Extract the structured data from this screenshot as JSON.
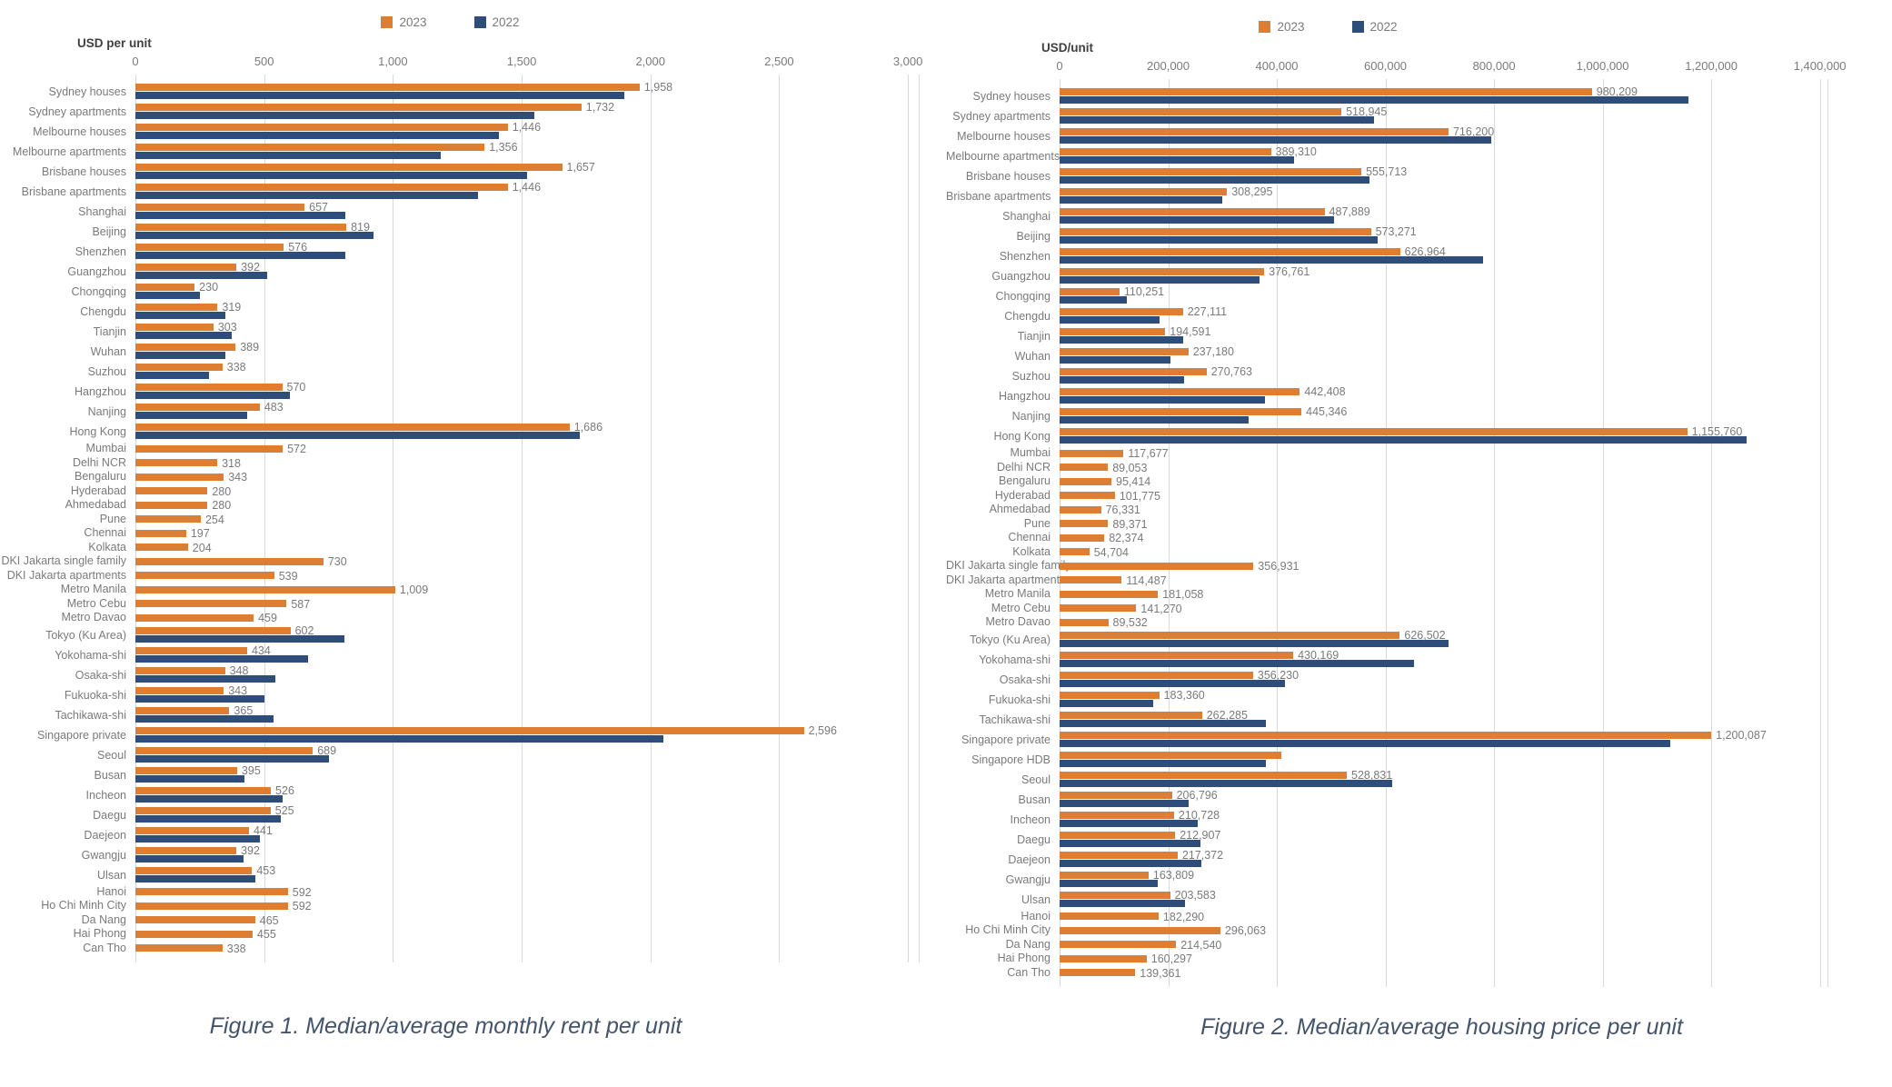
{
  "chart_data": [
    {
      "type": "bar",
      "orientation": "horizontal",
      "x_axis_title": "USD per unit",
      "caption": "Figure 1. Median/average monthly rent per unit",
      "xlim": [
        0,
        3042
      ],
      "grid": true,
      "legend_position": "top-center",
      "legend": [
        "2023",
        "2022"
      ],
      "x_ticks": {
        "values": [
          0,
          500,
          1000,
          1500,
          2000,
          2500,
          3000
        ],
        "labels": [
          "0",
          "500",
          "1,000",
          "1,500",
          "2,000",
          "2,500",
          "3,000"
        ]
      },
      "categories": [
        "Sydney houses",
        "Sydney apartments",
        "Melbourne houses",
        "Melbourne apartments",
        "Brisbane houses",
        "Brisbane apartments",
        "Shanghai",
        "Beijing",
        "Shenzhen",
        "Guangzhou",
        "Chongqing",
        "Chengdu",
        "Tianjin",
        "Wuhan",
        "Suzhou",
        "Hangzhou",
        "Nanjing",
        "Hong Kong",
        "Mumbai",
        "Delhi NCR",
        "Bengaluru",
        "Hyderabad",
        "Ahmedabad",
        "Pune",
        "Chennai",
        "Kolkata",
        "DKI Jakarta single family",
        "DKI Jakarta apartments",
        "Metro Manila",
        "Metro Cebu",
        "Metro Davao",
        "Tokyo (Ku Area)",
        "Yokohama-shi",
        "Osaka-shi",
        "Fukuoka-shi",
        "Tachikawa-shi",
        "Singapore private",
        "Seoul",
        "Busan",
        "Incheon",
        "Daegu",
        "Daejeon",
        "Gwangju",
        "Ulsan",
        "Hanoi",
        "Ho Chi Minh City",
        "Da Nang",
        "Hai Phong",
        "Can Tho"
      ],
      "series": [
        {
          "name": "2023",
          "color": "#DE7E32",
          "values": [
            1958,
            1732,
            1446,
            1356,
            1657,
            1446,
            657,
            819,
            576,
            392,
            230,
            319,
            303,
            389,
            338,
            570,
            483,
            1686,
            572,
            318,
            343,
            280,
            280,
            254,
            197,
            204,
            730,
            539,
            1009,
            587,
            459,
            602,
            434,
            348,
            343,
            365,
            2596,
            689,
            395,
            526,
            525,
            441,
            392,
            453,
            592,
            592,
            465,
            455,
            338
          ],
          "labels": [
            "1,958",
            "1,732",
            "1,446",
            "1,356",
            "1,657",
            "1,446",
            "657",
            "819",
            "576",
            "392",
            "230",
            "319",
            "303",
            "389",
            "338",
            "570",
            "483",
            "1,686",
            "572",
            "318",
            "343",
            "280",
            "280",
            "254",
            "197",
            "204",
            "730",
            "539",
            "1,009",
            "587",
            "459",
            "602",
            "434",
            "348",
            "343",
            "365",
            "2,596",
            "689",
            "395",
            "526",
            "525",
            "441",
            "392",
            "453",
            "592",
            "592",
            "465",
            "455",
            "338"
          ]
        },
        {
          "name": "2022",
          "color": "#2E4D7B",
          "values": [
            1900,
            1550,
            1410,
            1185,
            1520,
            1330,
            815,
            925,
            815,
            510,
            250,
            350,
            375,
            350,
            285,
            600,
            435,
            1725,
            null,
            null,
            null,
            null,
            null,
            null,
            null,
            null,
            null,
            null,
            null,
            null,
            null,
            810,
            670,
            545,
            500,
            535,
            2050,
            750,
            425,
            570,
            565,
            485,
            420,
            465,
            null,
            null,
            null,
            null,
            null
          ],
          "labels": null
        }
      ]
    },
    {
      "type": "bar",
      "orientation": "horizontal",
      "x_axis_title": "USD/unit",
      "caption": "Figure 2. Median/average housing price per unit",
      "xlim": [
        0,
        1414000
      ],
      "grid": true,
      "legend_position": "top-center",
      "legend": [
        "2023",
        "2022"
      ],
      "x_ticks": {
        "values": [
          0,
          200000,
          400000,
          600000,
          800000,
          1000000,
          1200000,
          1400000
        ],
        "labels": [
          "0",
          "200,000",
          "400,000",
          "600,000",
          "800,000",
          "1,000,000",
          "1,200,000",
          "1,400,000"
        ]
      },
      "categories": [
        "Sydney houses",
        "Sydney apartments",
        "Melbourne houses",
        "Melbourne apartments",
        "Brisbane houses",
        "Brisbane apartments",
        "Shanghai",
        "Beijing",
        "Shenzhen",
        "Guangzhou",
        "Chongqing",
        "Chengdu",
        "Tianjin",
        "Wuhan",
        "Suzhou",
        "Hangzhou",
        "Nanjing",
        "Hong Kong",
        "Mumbai",
        "Delhi NCR",
        "Bengaluru",
        "Hyderabad",
        "Ahmedabad",
        "Pune",
        "Chennai",
        "Kolkata",
        "DKI Jakarta single family",
        "DKI Jakarta apartments",
        "Metro Manila",
        "Metro Cebu",
        "Metro Davao",
        "Tokyo (Ku Area)",
        "Yokohama-shi",
        "Osaka-shi",
        "Fukuoka-shi",
        "Tachikawa-shi",
        "Singapore private",
        "Singapore HDB",
        "Seoul",
        "Busan",
        "Incheon",
        "Daegu",
        "Daejeon",
        "Gwangju",
        "Ulsan",
        "Hanoi",
        "Ho Chi Minh City",
        "Da Nang",
        "Hai Phong",
        "Can Tho"
      ],
      "series": [
        {
          "name": "2023",
          "color": "#DE7E32",
          "values": [
            980209,
            518945,
            716200,
            389310,
            555713,
            308295,
            487889,
            573271,
            626964,
            376761,
            110251,
            227111,
            194591,
            237180,
            270763,
            442408,
            445346,
            1155760,
            117677,
            89053,
            95414,
            101775,
            76331,
            89371,
            82374,
            54704,
            356931,
            114487,
            181058,
            141270,
            89532,
            626502,
            430169,
            356230,
            183360,
            262285,
            1200087,
            408000,
            528831,
            206796,
            210728,
            212907,
            217372,
            163809,
            203583,
            182290,
            296063,
            214540,
            160297,
            139361
          ],
          "labels": [
            "980,209",
            "518,945",
            "716,200",
            "389,310",
            "555,713",
            "308,295",
            "487,889",
            "573,271",
            "626,964",
            "376,761",
            "110,251",
            "227,111",
            "194,591",
            "237,180",
            "270,763",
            "442,408",
            "445,346",
            "1,155,760",
            "117,677",
            "89,053",
            "95,414",
            "101,775",
            "76,331",
            "89,371",
            "82,374",
            "54,704",
            "356,931",
            "114,487",
            "181,058",
            "141,270",
            "89,532",
            "626,502",
            "430,169",
            "356,230",
            "183,360",
            "262,285",
            "1,200,087",
            null,
            "528,831",
            "206,796",
            "210,728",
            "212,907",
            "217,372",
            "163,809",
            "203,583",
            "182,290",
            "296,063",
            "214,540",
            "160,297",
            "139,361"
          ]
        },
        {
          "name": "2022",
          "color": "#2E4D7B",
          "values": [
            1158000,
            579000,
            795000,
            432000,
            570000,
            300000,
            505000,
            585000,
            780000,
            368000,
            124000,
            184000,
            228000,
            204000,
            229000,
            378000,
            348000,
            1265000,
            null,
            null,
            null,
            null,
            null,
            null,
            null,
            null,
            null,
            null,
            null,
            null,
            null,
            716000,
            653000,
            415000,
            172000,
            380000,
            1125000,
            380000,
            613000,
            238000,
            254000,
            259000,
            261000,
            181000,
            231000,
            null,
            null,
            null,
            null,
            null
          ],
          "labels": null
        }
      ]
    }
  ],
  "colors": {
    "series_2023": "#DE7E32",
    "series_2022": "#2E4D7B",
    "gridline": "#D9D9D9",
    "label_text": "#7A7A7A",
    "axis_title_text": "#404040",
    "caption_text": "#44546A"
  }
}
